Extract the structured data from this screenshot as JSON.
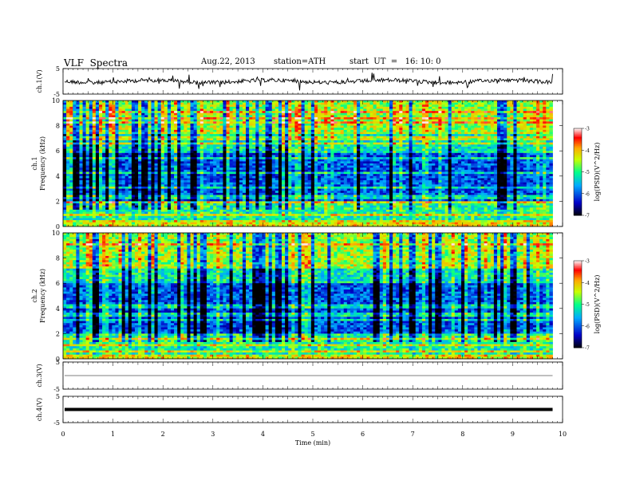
{
  "header": {
    "title": "VLF  Spectra",
    "date": "Aug.22, 2013",
    "station": "station=ATH",
    "start": "start  UT  =   16: 10: 0"
  },
  "chart_data": [
    {
      "type": "line",
      "name": "ch1-waveform",
      "ylabel": "ch.1(V)",
      "ylim": [
        -5,
        5
      ],
      "yticks": [
        "5",
        "-5"
      ],
      "xlim": [
        0,
        10
      ],
      "approx_baseline": 0
    },
    {
      "type": "heatmap",
      "name": "ch1-spectrogram",
      "ylabel_top": "ch.1",
      "ylabel": "Frequency  (kHz)",
      "ylim": [
        0,
        10
      ],
      "yticks": [
        "0",
        "2",
        "4",
        "6",
        "8",
        "10"
      ],
      "xlim": [
        0,
        9.8
      ],
      "colorbar": {
        "label": "log(PSD)(V^2/Hz)",
        "range": [
          -7,
          -3
        ],
        "ticks": [
          "-3",
          "-4",
          "-5",
          "-6",
          "-7"
        ]
      }
    },
    {
      "type": "heatmap",
      "name": "ch2-spectrogram",
      "ylabel_top": "ch.2",
      "ylabel": "Frequency  (kHz)",
      "ylim": [
        0,
        10
      ],
      "yticks": [
        "0",
        "2",
        "4",
        "6",
        "8",
        "10"
      ],
      "xlim": [
        0,
        9.8
      ],
      "colorbar": {
        "label": "log(PSD)(V^2/Hz)",
        "range": [
          -7,
          -3
        ],
        "ticks": [
          "-3",
          "-4",
          "-5",
          "-6",
          "-7"
        ]
      }
    },
    {
      "type": "line",
      "name": "ch3-waveform",
      "ylabel": "ch.3(V)",
      "ylim": [
        -5,
        5
      ],
      "yticks": [
        "5",
        "-5"
      ],
      "approx_value": 0
    },
    {
      "type": "line",
      "name": "ch4-waveform",
      "ylabel": "ch.4(V)",
      "ylim": [
        -5,
        5
      ],
      "yticks": [
        "5",
        "-5"
      ],
      "approx_value": 0
    }
  ],
  "xaxis": {
    "label": "Time  (min)",
    "ticks": [
      "0",
      "1",
      "2",
      "3",
      "4",
      "5",
      "6",
      "7",
      "8",
      "9",
      "10"
    ]
  },
  "colors": {
    "scale": [
      "#000000",
      "#0000cc",
      "#00aaff",
      "#00ff88",
      "#ffff00",
      "#ff8800",
      "#ff0000",
      "#ffffff"
    ]
  }
}
